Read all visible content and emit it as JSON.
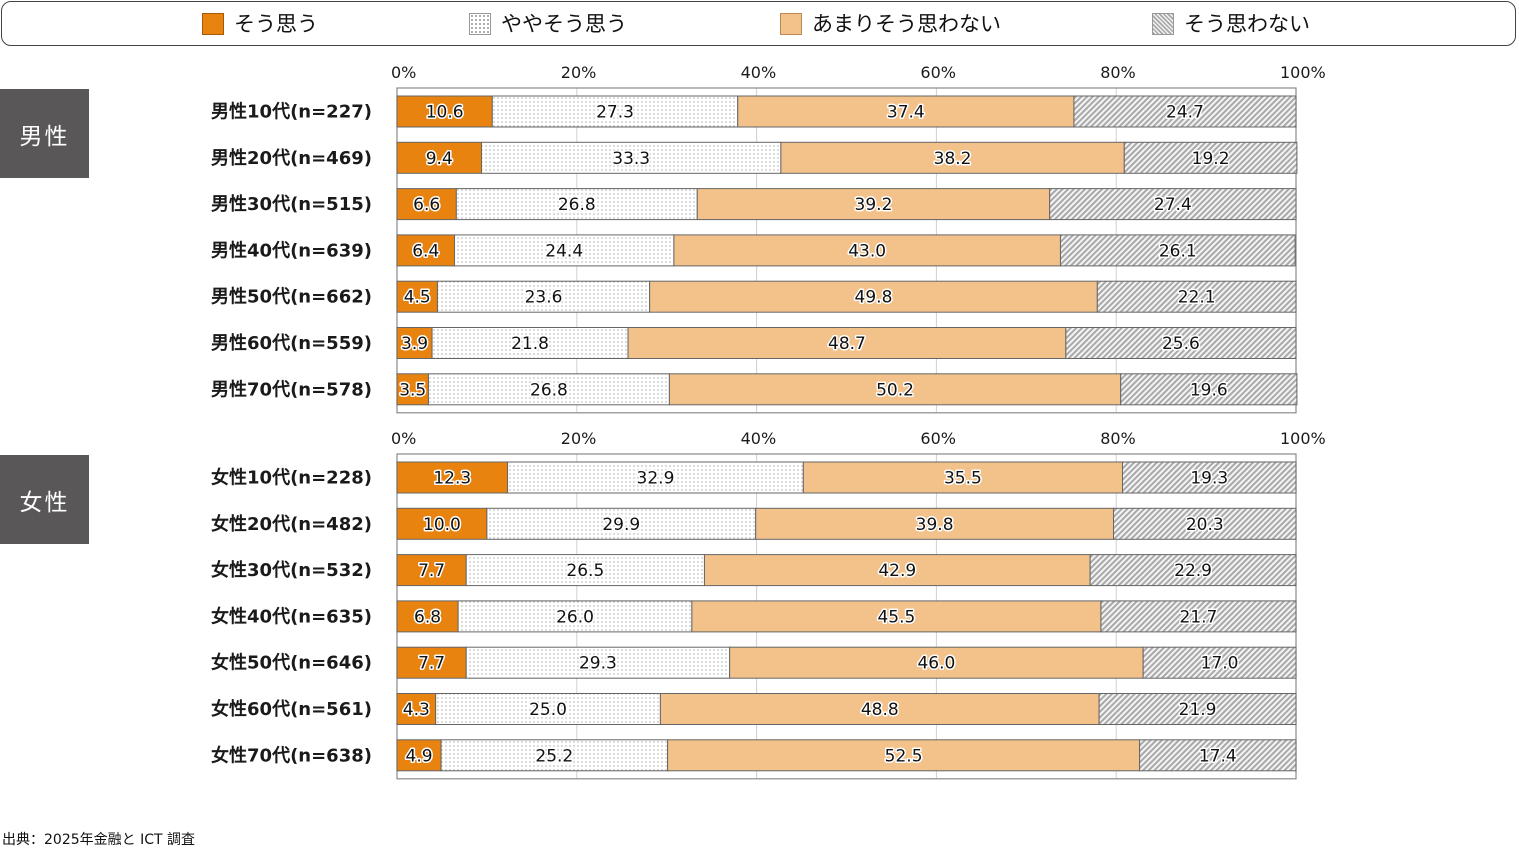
{
  "legend": {
    "items": [
      {
        "label": "そう思う",
        "color": "#E8830F",
        "pattern": "solid"
      },
      {
        "label": "ややそう思う",
        "color": "#FFFFFF",
        "pattern": "dots"
      },
      {
        "label": "あまりそう思わない",
        "color": "#F3C28B",
        "pattern": "solid"
      },
      {
        "label": "そう思わない",
        "color": "#C8C8C8",
        "pattern": "diagonal-hatch"
      }
    ]
  },
  "groups": {
    "male": {
      "label": "男性"
    },
    "female": {
      "label": "女性"
    }
  },
  "source": "出典：2025年金融と ICT 調査",
  "chart_data": [
    {
      "type": "bar",
      "orientation": "horizontal",
      "stacked": "percent",
      "title": "男性",
      "xlim": [
        0,
        100
      ],
      "xticks": [
        "0%",
        "20%",
        "40%",
        "60%",
        "80%",
        "100%"
      ],
      "grid": true,
      "legend_position": "top",
      "categories": [
        "男性10代(n=227)",
        "男性20代(n=469)",
        "男性30代(n=515)",
        "男性40代(n=639)",
        "男性50代(n=662)",
        "男性60代(n=559)",
        "男性70代(n=578)"
      ],
      "series": [
        {
          "name": "そう思う",
          "values": [
            10.6,
            9.4,
            6.6,
            6.4,
            4.5,
            3.9,
            3.5
          ]
        },
        {
          "name": "ややそう思う",
          "values": [
            27.3,
            33.3,
            26.8,
            24.4,
            23.6,
            21.8,
            26.8
          ]
        },
        {
          "name": "あまりそう思わない",
          "values": [
            37.4,
            38.2,
            39.2,
            43.0,
            49.8,
            48.7,
            50.2
          ]
        },
        {
          "name": "そう思わない",
          "values": [
            24.7,
            19.2,
            27.4,
            26.1,
            22.1,
            25.6,
            19.6
          ]
        }
      ]
    },
    {
      "type": "bar",
      "orientation": "horizontal",
      "stacked": "percent",
      "title": "女性",
      "xlim": [
        0,
        100
      ],
      "xticks": [
        "0%",
        "20%",
        "40%",
        "60%",
        "80%",
        "100%"
      ],
      "grid": true,
      "legend_position": "top",
      "categories": [
        "女性10代(n=228)",
        "女性20代(n=482)",
        "女性30代(n=532)",
        "女性40代(n=635)",
        "女性50代(n=646)",
        "女性60代(n=561)",
        "女性70代(n=638)"
      ],
      "series": [
        {
          "name": "そう思う",
          "values": [
            12.3,
            10.0,
            7.7,
            6.8,
            7.7,
            4.3,
            4.9
          ]
        },
        {
          "name": "ややそう思う",
          "values": [
            32.9,
            29.9,
            26.5,
            26.0,
            29.3,
            25.0,
            25.2
          ]
        },
        {
          "name": "あまりそう思わない",
          "values": [
            35.5,
            39.8,
            42.9,
            45.5,
            46.0,
            48.8,
            52.5
          ]
        },
        {
          "name": "そう思わない",
          "values": [
            19.3,
            20.3,
            22.9,
            21.7,
            17.0,
            21.9,
            17.4
          ]
        }
      ]
    }
  ]
}
